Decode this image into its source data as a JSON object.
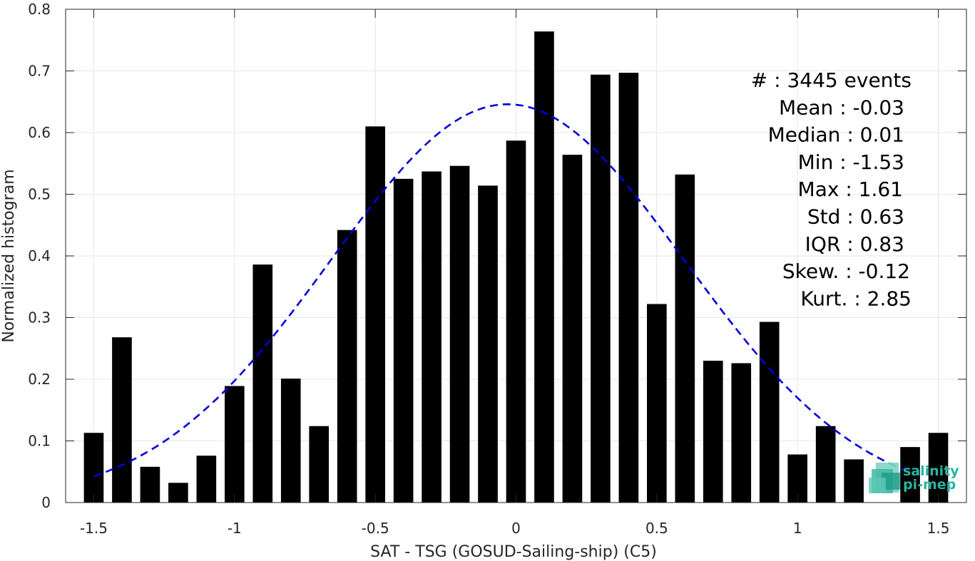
{
  "chart_data": {
    "type": "bar",
    "xlabel": "SAT - TSG (GOSUD-Sailing-ship) (C5)",
    "ylabel": "Normalized histogram",
    "xlim": [
      -1.6,
      1.6
    ],
    "ylim": [
      0,
      0.8
    ],
    "xticks": [
      "-1.5",
      "-1",
      "-0.5",
      "0",
      "0.5",
      "1",
      "1.5"
    ],
    "yticks": [
      "0",
      "0.1",
      "0.2",
      "0.3",
      "0.4",
      "0.5",
      "0.6",
      "0.7",
      "0.8"
    ],
    "grid": true,
    "bar_width": 0.07,
    "bar_color": "#000000",
    "curve_color": "#0000dd",
    "x": [
      -1.5,
      -1.4,
      -1.3,
      -1.2,
      -1.1,
      -1.0,
      -0.9,
      -0.8,
      -0.7,
      -0.6,
      -0.5,
      -0.4,
      -0.3,
      -0.2,
      -0.1,
      0.0,
      0.1,
      0.2,
      0.3,
      0.4,
      0.5,
      0.6,
      0.7,
      0.8,
      0.9,
      1.0,
      1.1,
      1.2,
      1.3,
      1.4,
      1.5
    ],
    "values": [
      0.113,
      0.268,
      0.058,
      0.032,
      0.076,
      0.189,
      0.386,
      0.201,
      0.124,
      0.442,
      0.61,
      0.525,
      0.537,
      0.546,
      0.514,
      0.587,
      0.764,
      0.564,
      0.694,
      0.697,
      0.322,
      0.532,
      0.23,
      0.226,
      0.293,
      0.078,
      0.124,
      0.07,
      0.0,
      0.09,
      0.113
    ],
    "fit_curve": {
      "style": "dashed",
      "mean": -0.03,
      "std": 0.63,
      "x_range": [
        -1.5,
        1.4
      ],
      "peak": 0.646
    },
    "annotations": [
      "#  : 3445 events",
      "Mean : -0.03",
      "Median : 0.01",
      "Min : -1.53",
      "Max : 1.61",
      "Std : 0.63",
      "IQR : 0.83",
      "Skew. : -0.12",
      "Kurt. : 2.85"
    ]
  },
  "logo": {
    "line1": "salinity",
    "line2": "pi-mep",
    "color": "#2bb3a0"
  }
}
